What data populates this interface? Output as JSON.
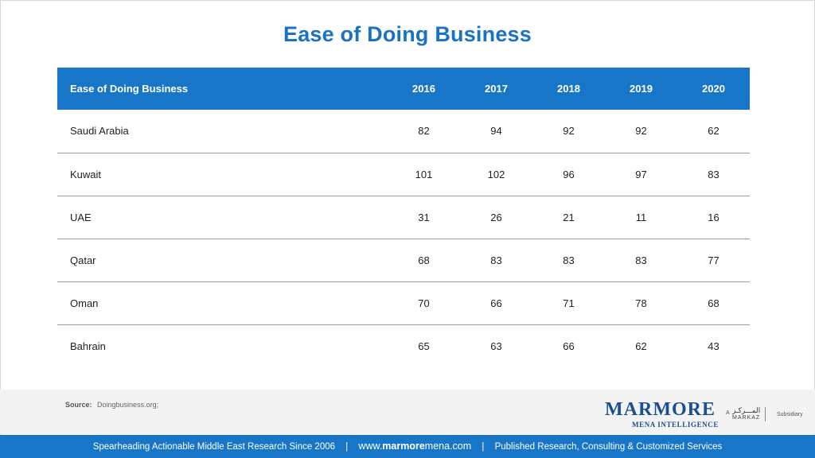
{
  "title": "Ease of Doing Business",
  "table": {
    "header": [
      "Ease of Doing Business",
      "2016",
      "2017",
      "2018",
      "2019",
      "2020"
    ],
    "rows": [
      {
        "country": "Saudi Arabia",
        "values": [
          "82",
          "94",
          "92",
          "92",
          "62"
        ]
      },
      {
        "country": "Kuwait",
        "values": [
          "101",
          "102",
          "96",
          "97",
          "83"
        ]
      },
      {
        "country": "UAE",
        "values": [
          "31",
          "26",
          "21",
          "11",
          "16"
        ]
      },
      {
        "country": "Qatar",
        "values": [
          "68",
          "83",
          "83",
          "83",
          "77"
        ]
      },
      {
        "country": "Oman",
        "values": [
          "70",
          "66",
          "71",
          "78",
          "68"
        ]
      },
      {
        "country": "Bahrain",
        "values": [
          "65",
          "63",
          "66",
          "62",
          "43"
        ]
      }
    ]
  },
  "source": {
    "label": "Source:",
    "text": "Doingbusiness.org;"
  },
  "logo": {
    "wordmark": "MARMORE",
    "tagline": "MENA INTELLIGENCE",
    "a": "A",
    "markaz_ar": "المـــركـز",
    "markaz": "MARKAZ",
    "subsidiary": "Subsidiary"
  },
  "footer": {
    "left": "Spearheading Actionable Middle East Research Since 2006",
    "web_prefix": "www.",
    "web_bold": "marmore",
    "web_suffix": "mena.com",
    "right": "Published Research, Consulting & Customized Services",
    "separator": "|"
  },
  "colors": {
    "accent": "#1876c9",
    "title": "#1a73c2",
    "logo": "#1b4f8f"
  }
}
